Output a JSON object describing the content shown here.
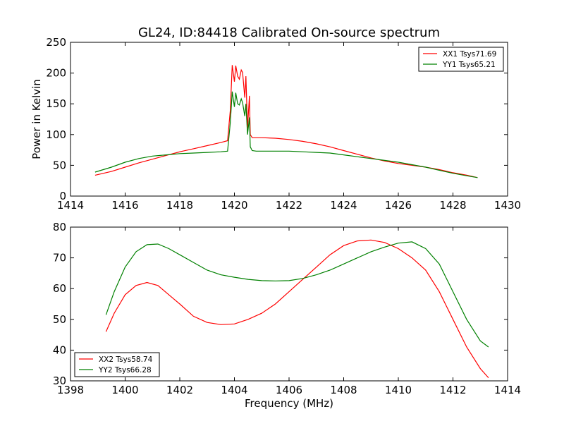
{
  "title": "GL24, ID:84418 Calibrated On-source spectrum",
  "chart_data": [
    {
      "type": "line",
      "ylabel": "Power in Kelvin",
      "xlabel": "",
      "xlim": [
        1414,
        1430
      ],
      "ylim": [
        0,
        250
      ],
      "xticks": [
        1414,
        1416,
        1418,
        1420,
        1422,
        1424,
        1426,
        1428,
        1430
      ],
      "yticks": [
        0,
        50,
        100,
        150,
        200,
        250
      ],
      "legend": "top-right",
      "series": [
        {
          "name": "XX1 Tsys71.69",
          "color": "#ff0000",
          "x": [
            1414.9,
            1415.5,
            1416.0,
            1416.5,
            1417.0,
            1417.5,
            1418.0,
            1418.5,
            1419.0,
            1419.5,
            1419.75,
            1419.85,
            1419.92,
            1420.0,
            1420.05,
            1420.12,
            1420.18,
            1420.25,
            1420.3,
            1420.38,
            1420.42,
            1420.48,
            1420.55,
            1420.58,
            1420.65,
            1420.8,
            1421.0,
            1421.5,
            1422.0,
            1422.5,
            1423.0,
            1423.5,
            1424.0,
            1424.5,
            1425.0,
            1425.5,
            1426.0,
            1426.5,
            1427.0,
            1427.5,
            1428.0,
            1428.5,
            1428.9
          ],
          "values": [
            34,
            40,
            47,
            54,
            60,
            66,
            72,
            77,
            82,
            87,
            90,
            140,
            213,
            186,
            212,
            195,
            190,
            205,
            201,
            160,
            195,
            110,
            163,
            100,
            95,
            95,
            95,
            94,
            92,
            89,
            85,
            80,
            74,
            68,
            62,
            57,
            53,
            50,
            47,
            43,
            38,
            34,
            30
          ]
        },
        {
          "name": "YY1 Tsys65.21",
          "color": "#008000",
          "x": [
            1414.9,
            1415.5,
            1416.0,
            1416.5,
            1417.0,
            1417.5,
            1418.0,
            1418.5,
            1419.0,
            1419.5,
            1419.75,
            1419.85,
            1419.92,
            1420.0,
            1420.05,
            1420.12,
            1420.18,
            1420.25,
            1420.3,
            1420.38,
            1420.42,
            1420.48,
            1420.55,
            1420.58,
            1420.65,
            1420.8,
            1421.0,
            1421.5,
            1422.0,
            1422.5,
            1423.0,
            1423.5,
            1424.0,
            1424.5,
            1425.0,
            1425.5,
            1426.0,
            1426.5,
            1427.0,
            1427.5,
            1428.0,
            1428.5,
            1428.9
          ],
          "values": [
            39,
            47,
            55,
            61,
            65,
            67,
            69,
            70,
            71,
            72,
            73,
            120,
            170,
            145,
            168,
            150,
            148,
            158,
            152,
            130,
            150,
            100,
            128,
            80,
            74,
            73,
            73,
            73,
            73,
            72,
            71,
            70,
            67,
            64,
            61,
            58,
            55,
            51,
            47,
            42,
            37,
            33,
            30
          ]
        }
      ]
    },
    {
      "type": "line",
      "ylabel": "",
      "xlabel": "Frequency (MHz)",
      "xlim": [
        1398,
        1414
      ],
      "ylim": [
        30,
        80
      ],
      "xticks": [
        1398,
        1400,
        1402,
        1404,
        1406,
        1408,
        1410,
        1412,
        1414
      ],
      "yticks": [
        30,
        40,
        50,
        60,
        70,
        80
      ],
      "legend": "bottom-left",
      "series": [
        {
          "name": "XX2 Tsys58.74",
          "color": "#ff0000",
          "x": [
            1399.3,
            1399.6,
            1400.0,
            1400.4,
            1400.8,
            1401.2,
            1401.6,
            1402.0,
            1402.5,
            1403.0,
            1403.5,
            1404.0,
            1404.5,
            1405.0,
            1405.5,
            1406.0,
            1406.5,
            1407.0,
            1407.5,
            1408.0,
            1408.5,
            1409.0,
            1409.5,
            1410.0,
            1410.5,
            1411.0,
            1411.5,
            1412.0,
            1412.5,
            1413.0,
            1413.3
          ],
          "values": [
            46,
            52,
            58,
            61,
            62,
            61,
            58,
            55,
            51,
            49,
            48.3,
            48.5,
            50,
            52,
            55,
            59,
            63,
            67,
            71,
            74,
            75.5,
            75.8,
            75,
            73,
            70,
            66,
            59,
            50,
            41,
            34,
            31
          ]
        },
        {
          "name": "YY2 Tsys66.28",
          "color": "#008000",
          "x": [
            1399.3,
            1399.6,
            1400.0,
            1400.4,
            1400.8,
            1401.2,
            1401.6,
            1402.0,
            1402.5,
            1403.0,
            1403.5,
            1404.0,
            1404.5,
            1405.0,
            1405.5,
            1406.0,
            1406.5,
            1407.0,
            1407.5,
            1408.0,
            1408.5,
            1409.0,
            1409.5,
            1410.0,
            1410.5,
            1411.0,
            1411.5,
            1412.0,
            1412.5,
            1413.0,
            1413.3
          ],
          "values": [
            51.5,
            59,
            67,
            72,
            74.3,
            74.5,
            73,
            71,
            68.5,
            66,
            64.5,
            63.7,
            63,
            62.6,
            62.5,
            62.6,
            63.3,
            64.5,
            66,
            68,
            70,
            72,
            73.5,
            74.8,
            75.2,
            73,
            68,
            59,
            50,
            43,
            41
          ]
        }
      ]
    }
  ]
}
